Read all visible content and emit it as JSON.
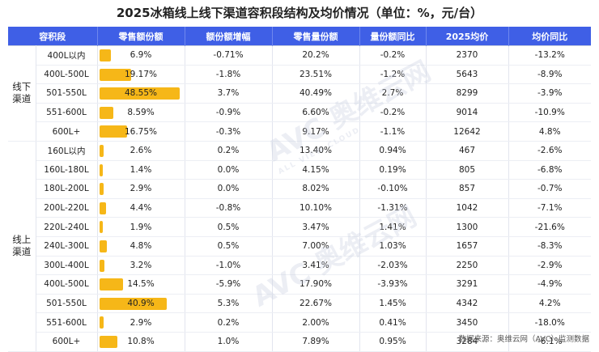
{
  "title": "2025冰箱线上线下渠道容积段结构及均价情况（单位：%，元/台）",
  "headers": [
    "容积段",
    "零售额份额",
    "额份额增幅",
    "零售量份额",
    "量份额同比",
    "2025均价",
    "均价同比"
  ],
  "groups": [
    {
      "label_line1": "线下",
      "label_line2": "渠道",
      "rows": [
        {
          "segment": "400L以内",
          "share": "6.9%",
          "share_value": 6.9,
          "share_change": "-0.71%",
          "vol_share": "20.2%",
          "vol_yoy": "-0.2%",
          "price": "2370",
          "price_yoy": "-13.2%"
        },
        {
          "segment": "400L-500L",
          "share": "19.17%",
          "share_value": 19.17,
          "share_change": "-1.8%",
          "vol_share": "23.51%",
          "vol_yoy": "-1.2%",
          "price": "5643",
          "price_yoy": "-8.9%"
        },
        {
          "segment": "501-550L",
          "share": "48.55%",
          "share_value": 48.55,
          "share_change": "3.7%",
          "vol_share": "40.49%",
          "vol_yoy": "2.7%",
          "price": "8299",
          "price_yoy": "-3.9%"
        },
        {
          "segment": "551-600L",
          "share": "8.59%",
          "share_value": 8.59,
          "share_change": "-0.9%",
          "vol_share": "6.60%",
          "vol_yoy": "-0.2%",
          "price": "9014",
          "price_yoy": "-10.9%"
        },
        {
          "segment": "600L+",
          "share": "16.75%",
          "share_value": 16.75,
          "share_change": "-0.3%",
          "vol_share": "9.17%",
          "vol_yoy": "-1.1%",
          "price": "12642",
          "price_yoy": "4.8%"
        }
      ]
    },
    {
      "label_line1": "线上",
      "label_line2": "渠道",
      "rows": [
        {
          "segment": "160L以内",
          "share": "2.6%",
          "share_value": 2.6,
          "share_change": "0.2%",
          "vol_share": "13.40%",
          "vol_yoy": "0.94%",
          "price": "467",
          "price_yoy": "-2.6%"
        },
        {
          "segment": "160L-180L",
          "share": "1.4%",
          "share_value": 1.4,
          "share_change": "0.0%",
          "vol_share": "4.15%",
          "vol_yoy": "0.19%",
          "price": "805",
          "price_yoy": "-6.8%"
        },
        {
          "segment": "180L-200L",
          "share": "2.9%",
          "share_value": 2.9,
          "share_change": "0.0%",
          "vol_share": "8.02%",
          "vol_yoy": "-0.10%",
          "price": "857",
          "price_yoy": "-0.7%"
        },
        {
          "segment": "200L-220L",
          "share": "4.4%",
          "share_value": 4.4,
          "share_change": "-0.8%",
          "vol_share": "10.10%",
          "vol_yoy": "-1.31%",
          "price": "1042",
          "price_yoy": "-7.1%"
        },
        {
          "segment": "220L-240L",
          "share": "1.9%",
          "share_value": 1.9,
          "share_change": "0.5%",
          "vol_share": "3.47%",
          "vol_yoy": "1.41%",
          "price": "1300",
          "price_yoy": "-21.6%"
        },
        {
          "segment": "240L-300L",
          "share": "4.8%",
          "share_value": 4.8,
          "share_change": "0.5%",
          "vol_share": "7.00%",
          "vol_yoy": "1.03%",
          "price": "1657",
          "price_yoy": "-8.3%"
        },
        {
          "segment": "300L-400L",
          "share": "3.2%",
          "share_value": 3.2,
          "share_change": "-1.0%",
          "vol_share": "3.41%",
          "vol_yoy": "-2.03%",
          "price": "2250",
          "price_yoy": "-2.9%"
        },
        {
          "segment": "400L-500L",
          "share": "14.5%",
          "share_value": 14.5,
          "share_change": "-5.9%",
          "vol_share": "17.90%",
          "vol_yoy": "-3.93%",
          "price": "3291",
          "price_yoy": "-4.9%"
        },
        {
          "segment": "501-550L",
          "share": "40.9%",
          "share_value": 40.9,
          "share_change": "5.3%",
          "vol_share": "22.67%",
          "vol_yoy": "1.45%",
          "price": "4342",
          "price_yoy": "4.2%"
        },
        {
          "segment": "551-600L",
          "share": "2.9%",
          "share_value": 2.9,
          "share_change": "0.2%",
          "vol_share": "2.00%",
          "vol_yoy": "0.41%",
          "price": "3450",
          "price_yoy": "-18.0%"
        },
        {
          "segment": "600L+",
          "share": "10.8%",
          "share_value": 10.8,
          "share_change": "1.0%",
          "vol_share": "7.89%",
          "vol_yoy": "0.95%",
          "price": "3284",
          "price_yoy": "-6.1%"
        }
      ]
    }
  ],
  "bar_color": "#f6b718",
  "header_color": "#3f5fe6",
  "watermark": {
    "main": "AVC 奥维云网",
    "sub": "ALL VIEW CLOUD"
  },
  "source": "数据来源：奥维云网（AVC）监测数据"
}
